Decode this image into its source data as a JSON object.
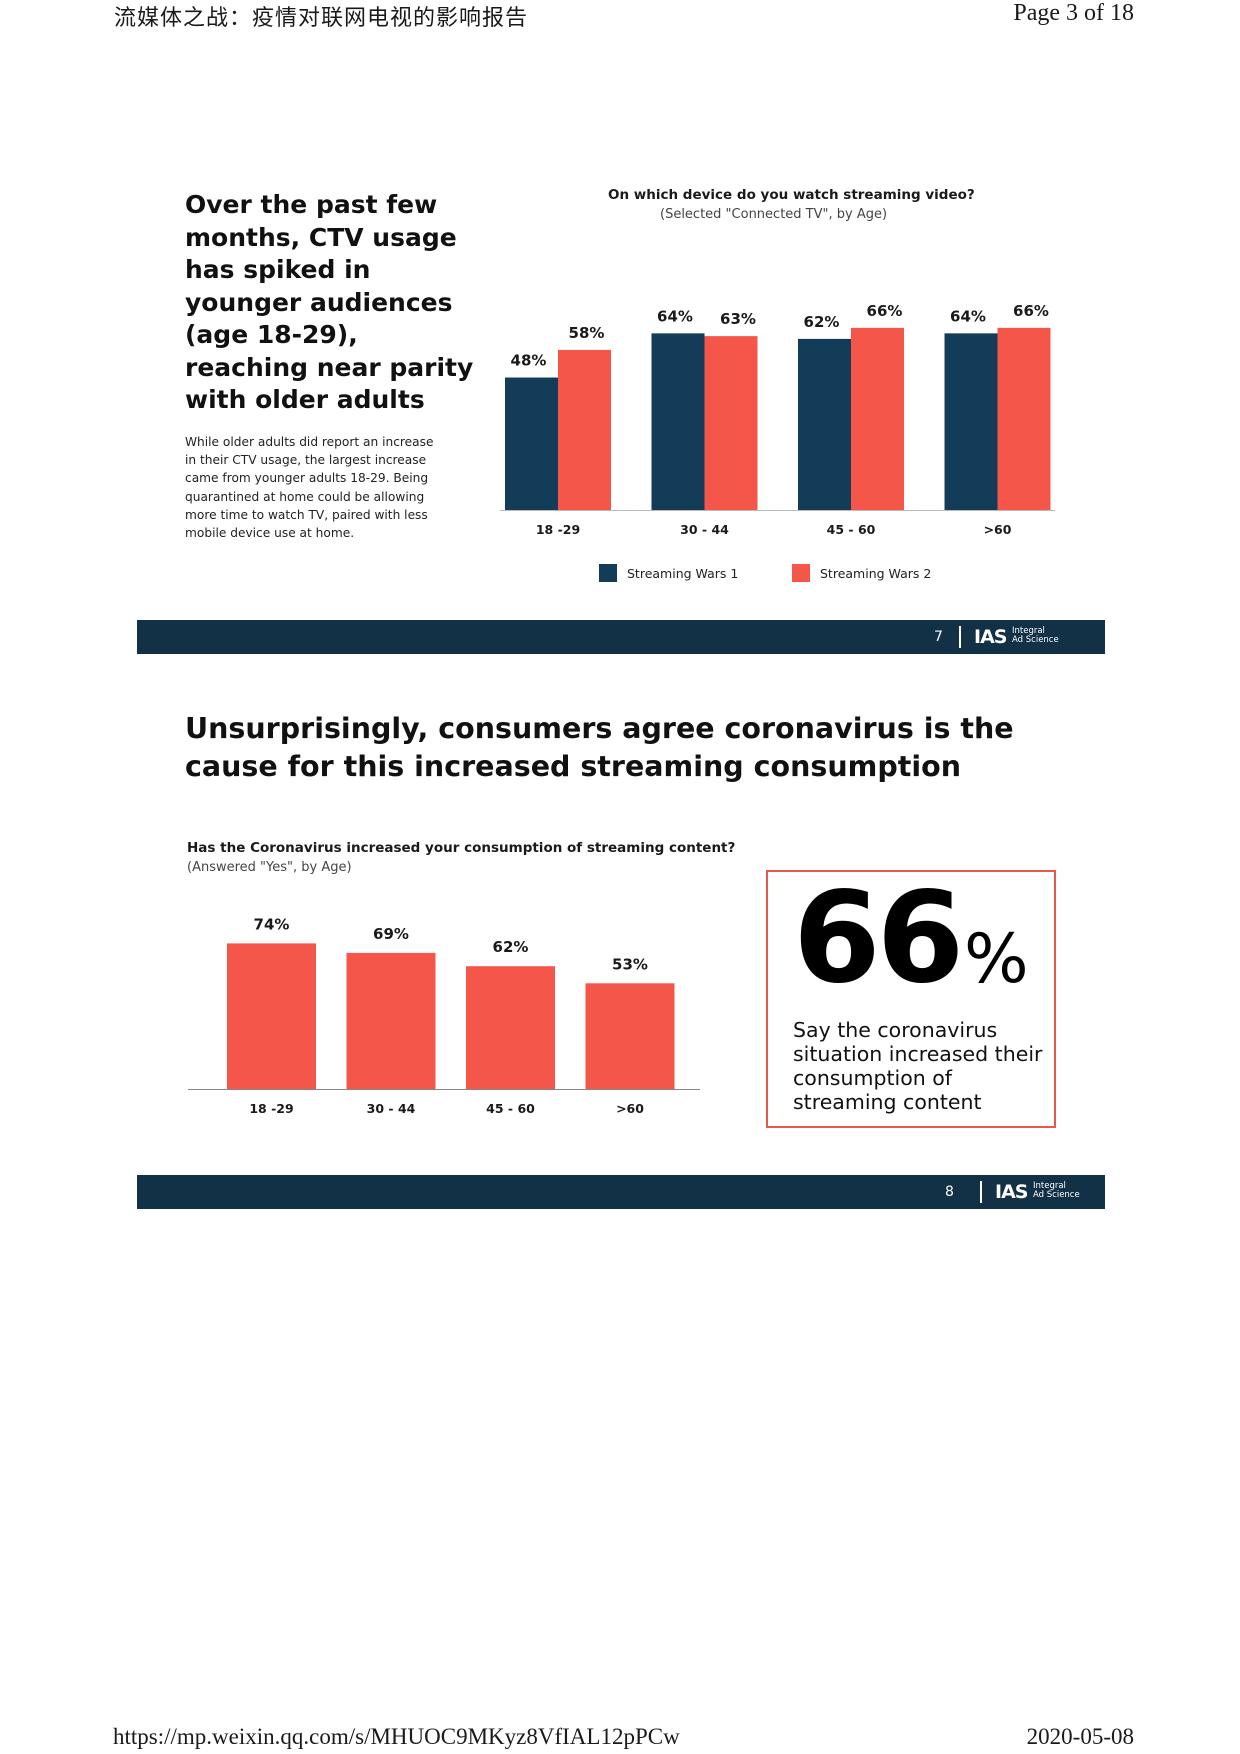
{
  "header": {
    "title": "流媒体之战：疫情对联网电视的影响报告",
    "page": "Page 3 of 18"
  },
  "footer": {
    "url": "https://mp.weixin.qq.com/s/MHUOC9MKyz8VfIAL12pPCw",
    "date": "2020-05-08"
  },
  "slide7": {
    "heading": "Over the past few months, CTV usage has spiked in younger audiences (age 18-29), reaching near parity with older adults",
    "body": "While older adults did report an increase in their CTV usage, the largest increase came from younger adults 18-29. Being quarantined at home could be allowing more time to watch TV, paired with less mobile device use at home.",
    "page_number": "7",
    "logo": {
      "main": "IAS",
      "sub1": "Integral",
      "sub2": "Ad Science"
    },
    "chart_data": {
      "type": "bar",
      "title": "On which device do you watch streaming video?",
      "subtitle": "(Selected \"Connected TV\", by Age)",
      "categories": [
        "18 -29",
        "30 - 44",
        "45 - 60",
        ">60"
      ],
      "series": [
        {
          "name": "Streaming Wars 1",
          "values": [
            48,
            64,
            62,
            64
          ],
          "labels": [
            "48%",
            "64%",
            "62%",
            "64%"
          ],
          "color": "#123c57"
        },
        {
          "name": "Streaming Wars 2",
          "values": [
            58,
            63,
            66,
            66
          ],
          "labels": [
            "58%",
            "63%",
            "66%",
            "66%"
          ],
          "color": "#f5564a"
        }
      ],
      "legend": "bottom",
      "grid": false
    }
  },
  "slide8": {
    "heading": "Unsurprisingly, consumers agree coronavirus is the cause for this increased streaming consumption",
    "page_number": "8",
    "logo": {
      "main": "IAS",
      "sub1": "Integral",
      "sub2": "Ad Science"
    },
    "stat": {
      "number": "66",
      "percent_sign": "%",
      "text": "Say the coronavirus situation increased their consumption of streaming content"
    },
    "chart_data": {
      "type": "bar",
      "title": "Has the Coronavirus increased your consumption of streaming content?",
      "subtitle": "(Answered \"Yes\", by Age)",
      "categories": [
        "18 -29",
        "30 - 44",
        "45 - 60",
        ">60"
      ],
      "values": [
        74,
        69,
        62,
        53
      ],
      "labels": [
        "74%",
        "69%",
        "62%",
        "53%"
      ],
      "color": "#f5564a",
      "grid": false
    }
  }
}
